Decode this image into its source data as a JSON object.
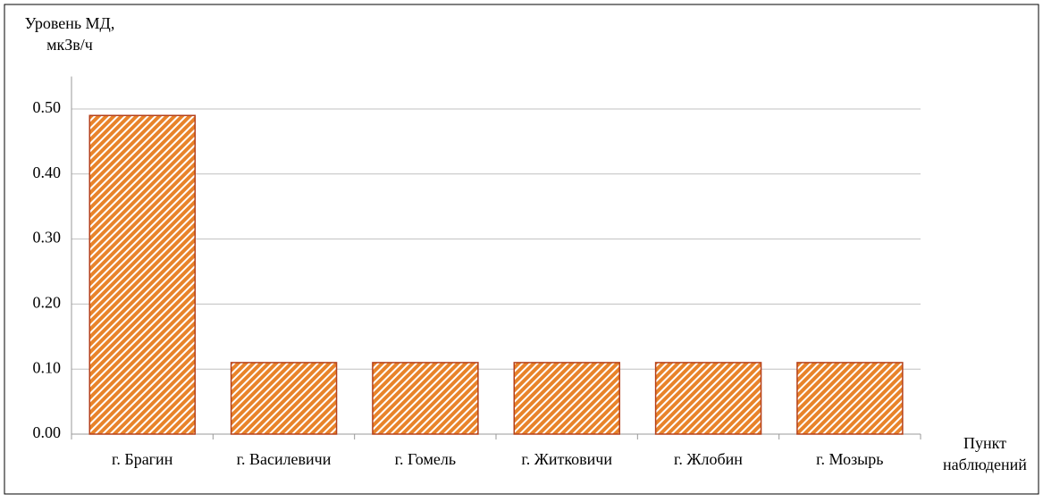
{
  "chart_data": {
    "type": "bar",
    "ylabel": [
      "Уровень МД,",
      "мкЗв/ч"
    ],
    "xlabel": [
      "Пункт",
      "наблюдений"
    ],
    "categories": [
      "г. Брагин",
      "г. Василевичи",
      "г. Гомель",
      "г. Житковичи",
      "г. Жлобин",
      "г. Мозырь"
    ],
    "values": [
      0.49,
      0.11,
      0.11,
      0.11,
      0.11,
      0.11
    ],
    "color": "#e8832a",
    "edge_color": "#b5401a",
    "ylim": [
      0,
      0.55
    ],
    "yticks": [
      {
        "value": 0,
        "label": "0.00"
      },
      {
        "value": 0.1,
        "label": "0.10"
      },
      {
        "value": 0.2,
        "label": "0.20"
      },
      {
        "value": 0.3,
        "label": "0.30"
      },
      {
        "value": 0.4,
        "label": "0.40"
      },
      {
        "value": 0.5,
        "label": "0.50"
      }
    ],
    "grid": true
  }
}
